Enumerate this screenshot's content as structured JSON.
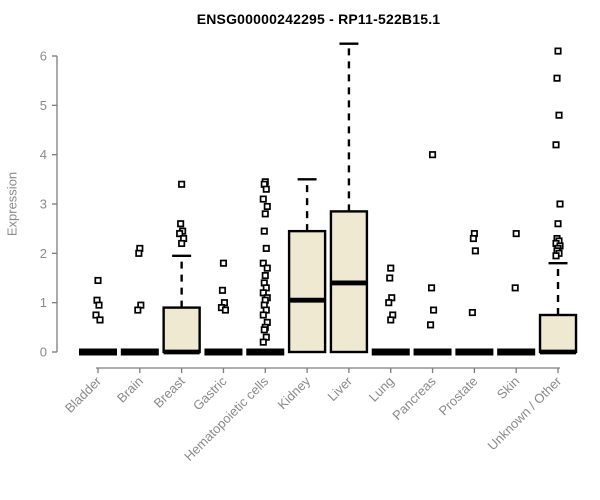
{
  "chart_data": {
    "type": "boxplot",
    "title": "ENSG00000242295 - RP11-522B15.1",
    "ylabel": "Expression",
    "xlabel": "",
    "yticks": [
      0,
      1,
      2,
      3,
      4,
      5,
      6
    ],
    "ylim": [
      0,
      6.4
    ],
    "grid": "off",
    "legend": "none",
    "colors": {
      "box_fill": "#EFE9D2",
      "box_stroke": "#000000",
      "axis": "#7d7d7d",
      "tick_label": "#8a8a8a",
      "title": "#000000",
      "background": "#ffffff"
    },
    "categories": [
      "Bladder",
      "Brain",
      "Breast",
      "Gastric",
      "Hematopoietic cells",
      "Kidney",
      "Liver",
      "Lung",
      "Pancreas",
      "Prostate",
      "Skin",
      "Unknown / Other"
    ],
    "series": [
      {
        "name": "Bladder",
        "whisker_low": 0,
        "q1": 0,
        "median": 0,
        "q3": 0,
        "whisker_high": 0,
        "outliers": [
          1.45,
          1.05,
          0.95,
          0.75,
          0.65
        ]
      },
      {
        "name": "Brain",
        "whisker_low": 0,
        "q1": 0,
        "median": 0,
        "q3": 0,
        "whisker_high": 0,
        "outliers": [
          2.1,
          2.0,
          0.95,
          0.85
        ]
      },
      {
        "name": "Breast",
        "whisker_low": 0,
        "q1": 0,
        "median": 0,
        "q3": 0.9,
        "whisker_high": 1.95,
        "outliers": [
          3.4,
          2.6,
          2.45,
          2.4,
          2.3,
          2.2
        ]
      },
      {
        "name": "Gastric",
        "whisker_low": 0,
        "q1": 0,
        "median": 0,
        "q3": 0,
        "whisker_high": 0,
        "outliers": [
          1.8,
          1.25,
          1.0,
          0.9,
          0.85
        ]
      },
      {
        "name": "Hematopoietic cells",
        "whisker_low": 0,
        "q1": 0,
        "median": 0,
        "q3": 0,
        "whisker_high": 0,
        "outliers": [
          3.45,
          3.4,
          3.3,
          3.1,
          2.95,
          2.8,
          2.45,
          2.1,
          1.8,
          1.7,
          1.55,
          1.4,
          1.3,
          1.2,
          1.1,
          1.05,
          0.95,
          0.85,
          0.75,
          0.6,
          0.5,
          0.45,
          0.3,
          0.2
        ]
      },
      {
        "name": "Kidney",
        "whisker_low": 0,
        "q1": 0,
        "median": 1.05,
        "q3": 2.45,
        "whisker_high": 3.5,
        "outliers": []
      },
      {
        "name": "Liver",
        "whisker_low": 0,
        "q1": 0,
        "median": 1.4,
        "q3": 2.85,
        "whisker_high": 6.25,
        "outliers": []
      },
      {
        "name": "Lung",
        "whisker_low": 0,
        "q1": 0,
        "median": 0,
        "q3": 0,
        "whisker_high": 0,
        "outliers": [
          1.7,
          1.5,
          1.1,
          1.0,
          0.75,
          0.65
        ]
      },
      {
        "name": "Pancreas",
        "whisker_low": 0,
        "q1": 0,
        "median": 0,
        "q3": 0,
        "whisker_high": 0,
        "outliers": [
          4.0,
          1.3,
          0.85,
          0.55
        ]
      },
      {
        "name": "Prostate",
        "whisker_low": 0,
        "q1": 0,
        "median": 0,
        "q3": 0,
        "whisker_high": 0,
        "outliers": [
          2.4,
          2.3,
          2.05,
          0.8
        ]
      },
      {
        "name": "Skin",
        "whisker_low": 0,
        "q1": 0,
        "median": 0,
        "q3": 0,
        "whisker_high": 0,
        "outliers": [
          2.4,
          1.3
        ]
      },
      {
        "name": "Unknown / Other",
        "whisker_low": 0,
        "q1": 0,
        "median": 0,
        "q3": 0.75,
        "whisker_high": 1.8,
        "outliers": [
          6.1,
          5.55,
          4.8,
          4.2,
          3.0,
          2.6,
          2.3,
          2.25,
          2.2,
          2.15,
          2.1,
          2.05,
          2.0,
          1.95
        ]
      }
    ]
  }
}
